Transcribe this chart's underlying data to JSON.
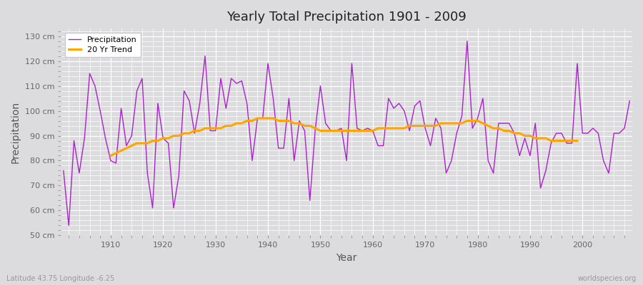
{
  "title": "Yearly Total Precipitation 1901 - 2009",
  "xlabel": "Year",
  "ylabel": "Precipitation",
  "subtitle_left": "Latitude 43.75 Longitude -6.25",
  "subtitle_right": "worldspecies.org",
  "ylim": [
    50,
    133
  ],
  "yticks": [
    50,
    60,
    70,
    80,
    90,
    100,
    110,
    120,
    130
  ],
  "ytick_labels": [
    "50 cm",
    "60 cm",
    "70 cm",
    "80 cm",
    "90 cm",
    "100 cm",
    "110 cm",
    "120 cm",
    "130 cm"
  ],
  "xlim": [
    1900.5,
    2009.5
  ],
  "precip_color": "#AA22CC",
  "trend_color": "#FFA500",
  "background_color": "#DCDCDE",
  "grid_color": "#FFFFFF",
  "years": [
    1901,
    1902,
    1903,
    1904,
    1905,
    1906,
    1907,
    1908,
    1909,
    1910,
    1911,
    1912,
    1913,
    1914,
    1915,
    1916,
    1917,
    1918,
    1919,
    1920,
    1921,
    1922,
    1923,
    1924,
    1925,
    1926,
    1927,
    1928,
    1929,
    1930,
    1931,
    1932,
    1933,
    1934,
    1935,
    1936,
    1937,
    1938,
    1939,
    1940,
    1941,
    1942,
    1943,
    1944,
    1945,
    1946,
    1947,
    1948,
    1949,
    1950,
    1951,
    1952,
    1953,
    1954,
    1955,
    1956,
    1957,
    1958,
    1959,
    1960,
    1961,
    1962,
    1963,
    1964,
    1965,
    1966,
    1967,
    1968,
    1969,
    1970,
    1971,
    1972,
    1973,
    1974,
    1975,
    1976,
    1977,
    1978,
    1979,
    1980,
    1981,
    1982,
    1983,
    1984,
    1985,
    1986,
    1987,
    1988,
    1989,
    1990,
    1991,
    1992,
    1993,
    1994,
    1995,
    1996,
    1997,
    1998,
    1999,
    2000,
    2001,
    2002,
    2003,
    2004,
    2005,
    2006,
    2007,
    2008,
    2009
  ],
  "precipitation": [
    76,
    54,
    88,
    75,
    89,
    115,
    110,
    100,
    89,
    80,
    79,
    101,
    86,
    90,
    108,
    113,
    75,
    61,
    103,
    89,
    87,
    61,
    74,
    108,
    104,
    91,
    103,
    122,
    92,
    92,
    113,
    101,
    113,
    111,
    112,
    103,
    80,
    97,
    97,
    119,
    105,
    85,
    85,
    105,
    80,
    96,
    92,
    64,
    92,
    110,
    95,
    92,
    92,
    93,
    80,
    119,
    93,
    92,
    93,
    92,
    86,
    86,
    105,
    101,
    103,
    100,
    92,
    102,
    104,
    93,
    86,
    97,
    93,
    75,
    80,
    91,
    98,
    128,
    93,
    97,
    105,
    80,
    75,
    95,
    95,
    95,
    91,
    82,
    89,
    82,
    95,
    69,
    76,
    87,
    91,
    91,
    87,
    87,
    119,
    91,
    91,
    93,
    91,
    80,
    75,
    91,
    91,
    93,
    104
  ],
  "trend": [
    null,
    null,
    null,
    null,
    null,
    null,
    null,
    null,
    null,
    82,
    83,
    84,
    85,
    86,
    87,
    87,
    87,
    88,
    88,
    89,
    89,
    90,
    90,
    91,
    91,
    92,
    92,
    93,
    93,
    93,
    93,
    94,
    94,
    95,
    95,
    96,
    96,
    97,
    97,
    97,
    97,
    96,
    96,
    96,
    95,
    95,
    94,
    94,
    93,
    92,
    92,
    92,
    92,
    92,
    92,
    92,
    92,
    92,
    92,
    92,
    93,
    93,
    93,
    93,
    93,
    93,
    94,
    94,
    94,
    94,
    94,
    94,
    95,
    95,
    95,
    95,
    95,
    96,
    96,
    96,
    95,
    94,
    93,
    93,
    92,
    92,
    91,
    91,
    90,
    90,
    89,
    89,
    89,
    88,
    88,
    88,
    88,
    88,
    88
  ]
}
